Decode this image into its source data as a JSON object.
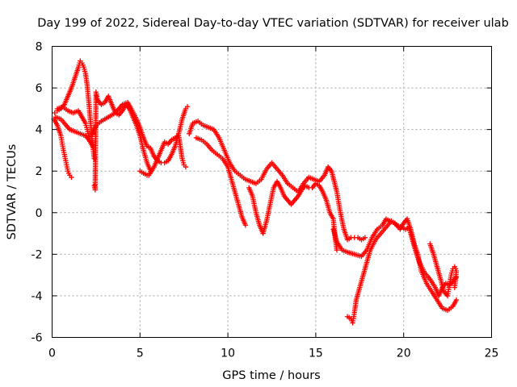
{
  "chart_data": {
    "type": "scatter",
    "title": "Day 199 of 2022, Sidereal Day-to-day VTEC variation (SDTVAR) for receiver ulab",
    "xlabel": "GPS time / hours",
    "ylabel": "SDTVAR / TECUs",
    "xlim": [
      0,
      25
    ],
    "ylim": [
      -6,
      8
    ],
    "xticks": [
      0,
      5,
      10,
      15,
      20,
      25
    ],
    "yticks": [
      -6,
      -4,
      -2,
      0,
      2,
      4,
      6,
      8
    ],
    "xtick_labels": [
      "0",
      "5",
      "10",
      "15",
      "20",
      "25"
    ],
    "ytick_labels": [
      "-6",
      "-4",
      "-2",
      "0",
      "2",
      "4",
      "6",
      "8"
    ],
    "grid": true,
    "marker": "+",
    "color": "#ff0000",
    "series": [
      {
        "name": "satellite-track-1",
        "points": [
          [
            0.15,
            4.8
          ],
          [
            0.3,
            4.9
          ],
          [
            0.5,
            5.0
          ],
          [
            0.7,
            5.2
          ],
          [
            0.9,
            5.6
          ],
          [
            1.1,
            6.0
          ],
          [
            1.3,
            6.5
          ],
          [
            1.5,
            7.0
          ],
          [
            1.6,
            7.3
          ],
          [
            1.7,
            7.2
          ],
          [
            1.8,
            7.0
          ],
          [
            1.9,
            6.7
          ],
          [
            2.0,
            6.1
          ],
          [
            2.1,
            5.2
          ],
          [
            2.2,
            4.2
          ],
          [
            2.3,
            3.3
          ],
          [
            2.4,
            2.6
          ]
        ]
      },
      {
        "name": "satellite-track-2",
        "points": [
          [
            0.1,
            4.5
          ],
          [
            0.3,
            4.2
          ],
          [
            0.5,
            3.7
          ],
          [
            0.6,
            3.2
          ],
          [
            0.7,
            2.8
          ],
          [
            0.8,
            2.4
          ],
          [
            0.9,
            2.0
          ],
          [
            1.0,
            1.8
          ],
          [
            1.1,
            1.7
          ]
        ]
      },
      {
        "name": "satellite-track-3",
        "points": [
          [
            0.2,
            4.6
          ],
          [
            0.5,
            4.5
          ],
          [
            0.8,
            4.2
          ],
          [
            1.0,
            4.0
          ],
          [
            1.3,
            3.9
          ],
          [
            1.6,
            3.8
          ],
          [
            1.9,
            3.7
          ],
          [
            2.1,
            3.5
          ],
          [
            2.3,
            3.2
          ]
        ]
      },
      {
        "name": "satellite-track-4",
        "points": [
          [
            0.3,
            5.0
          ],
          [
            0.6,
            5.1
          ],
          [
            0.9,
            4.9
          ],
          [
            1.2,
            4.8
          ],
          [
            1.5,
            4.9
          ],
          [
            1.7,
            4.6
          ],
          [
            1.9,
            4.3
          ],
          [
            2.0,
            4.0
          ],
          [
            2.1,
            3.6
          ]
        ]
      },
      {
        "name": "satellite-track-5",
        "points": [
          [
            2.4,
            1.3
          ],
          [
            2.45,
            1.1
          ],
          [
            2.5,
            5.8
          ],
          [
            2.6,
            5.4
          ],
          [
            2.8,
            5.2
          ],
          [
            3.0,
            5.3
          ],
          [
            3.2,
            5.6
          ],
          [
            3.4,
            5.2
          ],
          [
            3.6,
            4.8
          ],
          [
            3.8,
            4.7
          ],
          [
            4.0,
            4.9
          ],
          [
            4.2,
            5.2
          ],
          [
            4.4,
            5.0
          ],
          [
            4.6,
            4.6
          ],
          [
            4.8,
            4.2
          ],
          [
            5.0,
            3.7
          ],
          [
            5.2,
            3.0
          ],
          [
            5.4,
            2.4
          ],
          [
            5.6,
            2.0
          ]
        ]
      },
      {
        "name": "satellite-track-6",
        "points": [
          [
            2.3,
            3.8
          ],
          [
            2.5,
            4.2
          ],
          [
            2.8,
            4.4
          ],
          [
            3.2,
            4.6
          ],
          [
            3.6,
            4.8
          ],
          [
            3.8,
            5.0
          ],
          [
            4.0,
            5.2
          ],
          [
            4.3,
            5.3
          ],
          [
            4.5,
            5.0
          ],
          [
            4.8,
            4.5
          ],
          [
            5.0,
            4.1
          ],
          [
            5.2,
            3.6
          ],
          [
            5.4,
            3.2
          ],
          [
            5.6,
            3.1
          ],
          [
            5.8,
            2.7
          ],
          [
            6.0,
            2.5
          ],
          [
            6.2,
            2.4
          ],
          [
            6.4,
            2.4
          ],
          [
            6.6,
            2.5
          ],
          [
            6.8,
            2.8
          ],
          [
            7.0,
            3.2
          ],
          [
            7.2,
            3.8
          ],
          [
            7.4,
            4.5
          ],
          [
            7.6,
            5.0
          ],
          [
            7.7,
            5.1
          ]
        ]
      },
      {
        "name": "satellite-track-7",
        "points": [
          [
            5.0,
            2.0
          ],
          [
            5.2,
            1.9
          ],
          [
            5.4,
            1.8
          ],
          [
            5.5,
            1.8
          ],
          [
            5.8,
            2.2
          ],
          [
            6.0,
            2.6
          ],
          [
            6.2,
            3.0
          ],
          [
            6.4,
            3.4
          ],
          [
            6.6,
            3.3
          ],
          [
            6.8,
            3.5
          ],
          [
            7.0,
            3.6
          ],
          [
            7.2,
            3.7
          ],
          [
            7.4,
            2.6
          ],
          [
            7.5,
            2.3
          ],
          [
            7.6,
            2.2
          ]
        ]
      },
      {
        "name": "satellite-track-8",
        "points": [
          [
            7.8,
            3.8
          ],
          [
            8.0,
            4.3
          ],
          [
            8.3,
            4.4
          ],
          [
            8.6,
            4.2
          ],
          [
            8.9,
            4.1
          ],
          [
            9.2,
            4.0
          ],
          [
            9.5,
            3.6
          ],
          [
            9.8,
            3.0
          ],
          [
            10.1,
            2.4
          ],
          [
            10.4,
            2.0
          ],
          [
            10.7,
            1.8
          ],
          [
            11.0,
            1.6
          ],
          [
            11.3,
            1.5
          ],
          [
            11.6,
            1.4
          ],
          [
            11.9,
            1.6
          ],
          [
            12.2,
            2.1
          ],
          [
            12.5,
            2.4
          ],
          [
            12.8,
            2.1
          ],
          [
            13.1,
            1.8
          ],
          [
            13.4,
            1.4
          ],
          [
            13.7,
            1.2
          ],
          [
            14.0,
            1.0
          ],
          [
            14.3,
            1.4
          ],
          [
            14.6,
            1.7
          ],
          [
            14.9,
            1.6
          ],
          [
            15.2,
            1.5
          ],
          [
            15.5,
            1.8
          ],
          [
            15.7,
            2.2
          ],
          [
            15.9,
            2.0
          ],
          [
            16.2,
            1.0
          ],
          [
            16.4,
            0.0
          ],
          [
            16.6,
            -0.8
          ],
          [
            16.8,
            -1.3
          ],
          [
            17.0,
            -1.2
          ],
          [
            17.2,
            -1.2
          ],
          [
            17.4,
            -1.2
          ],
          [
            17.6,
            -1.3
          ],
          [
            17.8,
            -1.2
          ]
        ]
      },
      {
        "name": "satellite-track-9",
        "points": [
          [
            8.2,
            3.6
          ],
          [
            8.5,
            3.5
          ],
          [
            8.8,
            3.3
          ],
          [
            9.1,
            3.0
          ],
          [
            9.4,
            2.8
          ],
          [
            9.7,
            2.6
          ],
          [
            10.0,
            2.2
          ],
          [
            10.2,
            1.6
          ],
          [
            10.4,
            1.0
          ],
          [
            10.6,
            0.4
          ],
          [
            10.8,
            -0.2
          ],
          [
            11.0,
            -0.6
          ]
        ]
      },
      {
        "name": "satellite-track-10",
        "points": [
          [
            11.2,
            1.2
          ],
          [
            11.4,
            0.8
          ],
          [
            11.6,
            0.0
          ],
          [
            11.8,
            -0.6
          ],
          [
            12.0,
            -1.0
          ],
          [
            12.2,
            -0.4
          ],
          [
            12.4,
            0.4
          ],
          [
            12.6,
            1.2
          ],
          [
            12.8,
            1.5
          ],
          [
            13.0,
            1.2
          ],
          [
            13.2,
            0.8
          ],
          [
            13.4,
            0.6
          ],
          [
            13.6,
            0.4
          ],
          [
            13.8,
            0.6
          ],
          [
            14.0,
            0.8
          ],
          [
            14.2,
            1.1
          ],
          [
            14.4,
            1.3
          ],
          [
            14.6,
            1.2
          ],
          [
            14.8,
            1.2
          ],
          [
            15.0,
            1.4
          ],
          [
            15.2,
            1.3
          ],
          [
            15.4,
            1.0
          ],
          [
            15.6,
            0.6
          ],
          [
            15.8,
            0.0
          ],
          [
            16.0,
            -0.3
          ],
          [
            16.1,
            -1.2
          ],
          [
            16.2,
            -1.8
          ]
        ]
      },
      {
        "name": "satellite-track-11",
        "points": [
          [
            16.0,
            -0.8
          ],
          [
            16.2,
            -1.4
          ],
          [
            16.5,
            -1.8
          ],
          [
            16.8,
            -1.9
          ],
          [
            17.2,
            -2.0
          ],
          [
            17.6,
            -2.1
          ],
          [
            17.9,
            -1.8
          ],
          [
            18.2,
            -1.2
          ],
          [
            18.5,
            -0.8
          ],
          [
            18.8,
            -0.6
          ],
          [
            19.0,
            -0.3
          ],
          [
            19.2,
            -0.4
          ],
          [
            19.5,
            -0.5
          ],
          [
            19.8,
            -0.8
          ],
          [
            20.0,
            -0.5
          ],
          [
            20.2,
            -0.3
          ],
          [
            20.4,
            -0.8
          ],
          [
            20.6,
            -1.5
          ],
          [
            20.8,
            -2.0
          ],
          [
            21.0,
            -2.8
          ],
          [
            21.3,
            -3.4
          ],
          [
            21.6,
            -3.8
          ],
          [
            21.9,
            -4.2
          ],
          [
            22.2,
            -4.6
          ],
          [
            22.5,
            -4.7
          ],
          [
            22.8,
            -4.5
          ],
          [
            23.0,
            -4.2
          ]
        ]
      },
      {
        "name": "satellite-track-12",
        "points": [
          [
            16.8,
            -5.0
          ],
          [
            17.0,
            -5.1
          ],
          [
            17.1,
            -5.3
          ],
          [
            17.2,
            -4.8
          ],
          [
            17.3,
            -4.2
          ],
          [
            17.5,
            -3.6
          ],
          [
            17.7,
            -3.0
          ],
          [
            17.9,
            -2.4
          ],
          [
            18.1,
            -1.8
          ],
          [
            18.4,
            -1.3
          ],
          [
            18.7,
            -1.0
          ],
          [
            19.0,
            -0.7
          ],
          [
            19.3,
            -0.4
          ],
          [
            19.6,
            -0.6
          ],
          [
            19.9,
            -0.7
          ],
          [
            20.1,
            -0.8
          ],
          [
            20.3,
            -0.7
          ],
          [
            20.5,
            -1.3
          ],
          [
            20.7,
            -1.9
          ],
          [
            20.9,
            -2.4
          ],
          [
            21.2,
            -2.9
          ],
          [
            21.5,
            -3.2
          ],
          [
            21.8,
            -3.6
          ],
          [
            22.0,
            -4.0
          ],
          [
            22.2,
            -3.6
          ],
          [
            22.4,
            -3.4
          ],
          [
            22.6,
            -3.5
          ],
          [
            22.8,
            -3.3
          ],
          [
            23.0,
            -3.1
          ]
        ]
      },
      {
        "name": "satellite-track-13",
        "points": [
          [
            21.5,
            -1.5
          ],
          [
            21.7,
            -2.0
          ],
          [
            21.9,
            -2.6
          ],
          [
            22.1,
            -3.2
          ],
          [
            22.3,
            -3.8
          ],
          [
            22.5,
            -4.0
          ],
          [
            22.6,
            -3.5
          ],
          [
            22.7,
            -3.0
          ],
          [
            22.8,
            -2.7
          ],
          [
            22.9,
            -2.6
          ],
          [
            23.0,
            -2.8
          ],
          [
            22.9,
            -3.6
          ]
        ]
      }
    ]
  }
}
